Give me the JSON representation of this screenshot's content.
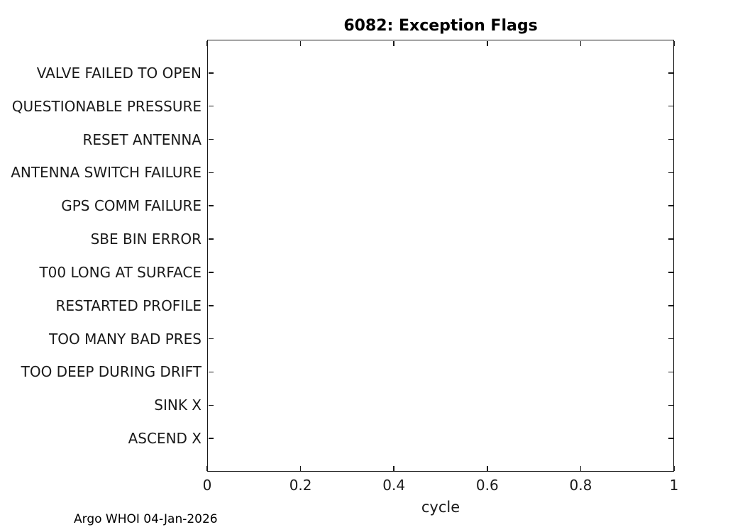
{
  "figure": {
    "footer": "Argo WHOI 04-Jan-2026"
  },
  "colors": {
    "background": "#ffffff",
    "axis": "#1a1a1a",
    "text": "#1a1a1a",
    "title": "#000000"
  },
  "chart_data": {
    "type": "scatter",
    "title": "6082: Exception Flags",
    "xlabel": "cycle",
    "ylabel": "",
    "xlim": [
      0,
      1
    ],
    "x_tick_values": [
      0,
      0.2,
      0.4,
      0.6,
      0.8,
      1
    ],
    "x_tick_labels": [
      "0",
      "0.2",
      "0.4",
      "0.6",
      "0.8",
      "1"
    ],
    "y_categories_top_to_bottom": [
      "VALVE FAILED TO OPEN",
      "QUESTIONABLE PRESSURE",
      "RESET ANTENNA",
      "ANTENNA SWITCH FAILURE",
      "GPS COMM FAILURE",
      "SBE BIN ERROR",
      "T00 LONG AT SURFACE",
      "RESTARTED PROFILE",
      "TOO MANY BAD PRES",
      "TOO DEEP DURING DRIFT",
      "SINK X",
      "ASCEND X"
    ],
    "series": [],
    "grid": false,
    "box": true,
    "tick_direction": "in",
    "legend": null
  }
}
